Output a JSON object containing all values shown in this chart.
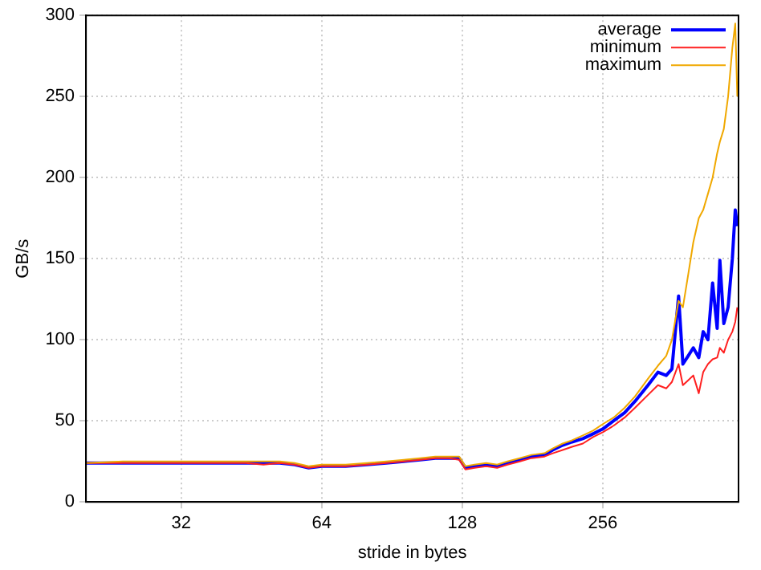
{
  "chart_data": {
    "type": "line",
    "xlabel": "stride in bytes",
    "ylabel": "GB/s",
    "log": "x",
    "x": [
      20,
      24,
      28,
      32,
      36,
      40,
      44,
      48,
      52,
      56,
      60,
      64,
      68,
      72,
      80,
      88,
      96,
      104,
      112,
      120,
      126,
      130,
      136,
      144,
      152,
      160,
      170,
      180,
      192,
      200,
      210,
      220,
      232,
      244,
      256,
      270,
      285,
      300,
      320,
      336,
      350,
      360,
      372,
      380,
      390,
      400,
      411,
      420,
      430,
      440,
      450,
      456,
      465,
      475,
      485,
      492,
      497
    ],
    "series": [
      {
        "name": "average",
        "color": "#0000ff",
        "values": [
          24,
          24,
          24,
          24,
          24,
          24,
          24,
          24,
          24,
          23,
          21,
          22,
          22,
          22,
          23,
          24,
          25,
          26,
          27,
          27,
          27,
          21,
          22,
          23,
          22,
          24,
          26,
          28,
          29,
          32,
          35,
          37,
          39,
          42,
          45,
          50,
          55,
          62,
          72,
          80,
          78,
          82,
          127,
          85,
          90,
          95,
          89,
          105,
          100,
          135,
          107,
          149,
          110,
          120,
          150,
          180,
          170
        ]
      },
      {
        "name": "minimum",
        "color": "#ff2020",
        "values": [
          24,
          24,
          24,
          24,
          24,
          24,
          24,
          23,
          24,
          23,
          21,
          22,
          22,
          22,
          23,
          24,
          25,
          26,
          27,
          27,
          26,
          20,
          21,
          22,
          21,
          23,
          25,
          27,
          28,
          30,
          32,
          34,
          36,
          40,
          43,
          47,
          52,
          58,
          66,
          72,
          70,
          74,
          85,
          72,
          75,
          78,
          67,
          80,
          85,
          88,
          89,
          95,
          92,
          100,
          105,
          111,
          120
        ]
      },
      {
        "name": "maximum",
        "color": "#f0a800",
        "values": [
          24,
          25,
          25,
          25,
          25,
          25,
          25,
          25,
          25,
          24,
          22,
          23,
          23,
          23,
          24,
          25,
          26,
          27,
          28,
          28,
          28,
          22,
          23,
          24,
          23,
          25,
          27,
          29,
          30,
          33,
          36,
          38,
          41,
          44,
          48,
          52,
          58,
          65,
          76,
          84,
          90,
          100,
          124,
          120,
          140,
          160,
          175,
          180,
          190,
          200,
          215,
          222,
          230,
          250,
          280,
          295,
          250
        ]
      }
    ],
    "xlim": [
      20,
      500
    ],
    "xticks": [
      32,
      64,
      128,
      256
    ],
    "ylim": [
      0,
      300
    ],
    "yticks": [
      0,
      50,
      100,
      150,
      200,
      250,
      300
    ],
    "grid": true,
    "legend": "top right",
    "marker": "none",
    "line_style": "solid"
  }
}
